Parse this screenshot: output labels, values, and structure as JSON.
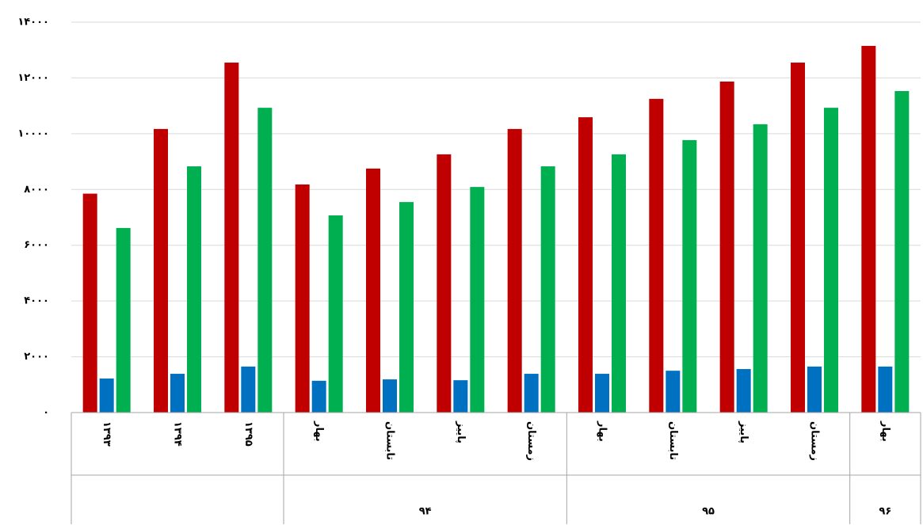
{
  "chart_data": {
    "type": "bar",
    "categories": [
      "۱۳۹۳",
      "۱۳۹۴",
      "۱۳۹۵",
      "بهار",
      "تابستان",
      "پاییز",
      "زمستان",
      "بهار",
      "تابستان",
      "پاییز",
      "زمستان",
      "بهار"
    ],
    "x_groups": [
      {
        "label": null,
        "size": 3
      },
      {
        "label": "۹۴",
        "size": 4
      },
      {
        "label": "۹۵",
        "size": 4
      },
      {
        "label": "۹۶",
        "size": 1
      }
    ],
    "series": [
      {
        "color": "#c00000",
        "values": [
          7850,
          10170,
          12550,
          8180,
          8750,
          9260,
          10170,
          10590,
          11250,
          11870,
          12550,
          13150
        ]
      },
      {
        "color": "#0070c0",
        "values": [
          1220,
          1390,
          1650,
          1140,
          1190,
          1160,
          1390,
          1390,
          1500,
          1560,
          1650,
          1650
        ]
      },
      {
        "color": "#00b050",
        "values": [
          6620,
          8830,
          10930,
          7070,
          7550,
          8090,
          8830,
          9260,
          9770,
          10340,
          10930,
          11530
        ]
      }
    ],
    "ylim": [
      0,
      14000
    ],
    "yticks": [
      {
        "value": 0,
        "label": "۰"
      },
      {
        "value": 2000,
        "label": "۲۰۰۰"
      },
      {
        "value": 4000,
        "label": "۴۰۰۰"
      },
      {
        "value": 6000,
        "label": "۶۰۰۰"
      },
      {
        "value": 8000,
        "label": "۸۰۰۰"
      },
      {
        "value": 10000,
        "label": "۱۰۰۰۰"
      },
      {
        "value": 12000,
        "label": "۱۲۰۰۰"
      },
      {
        "value": 14000,
        "label": "۱۴۰۰۰"
      }
    ],
    "grid": true
  }
}
